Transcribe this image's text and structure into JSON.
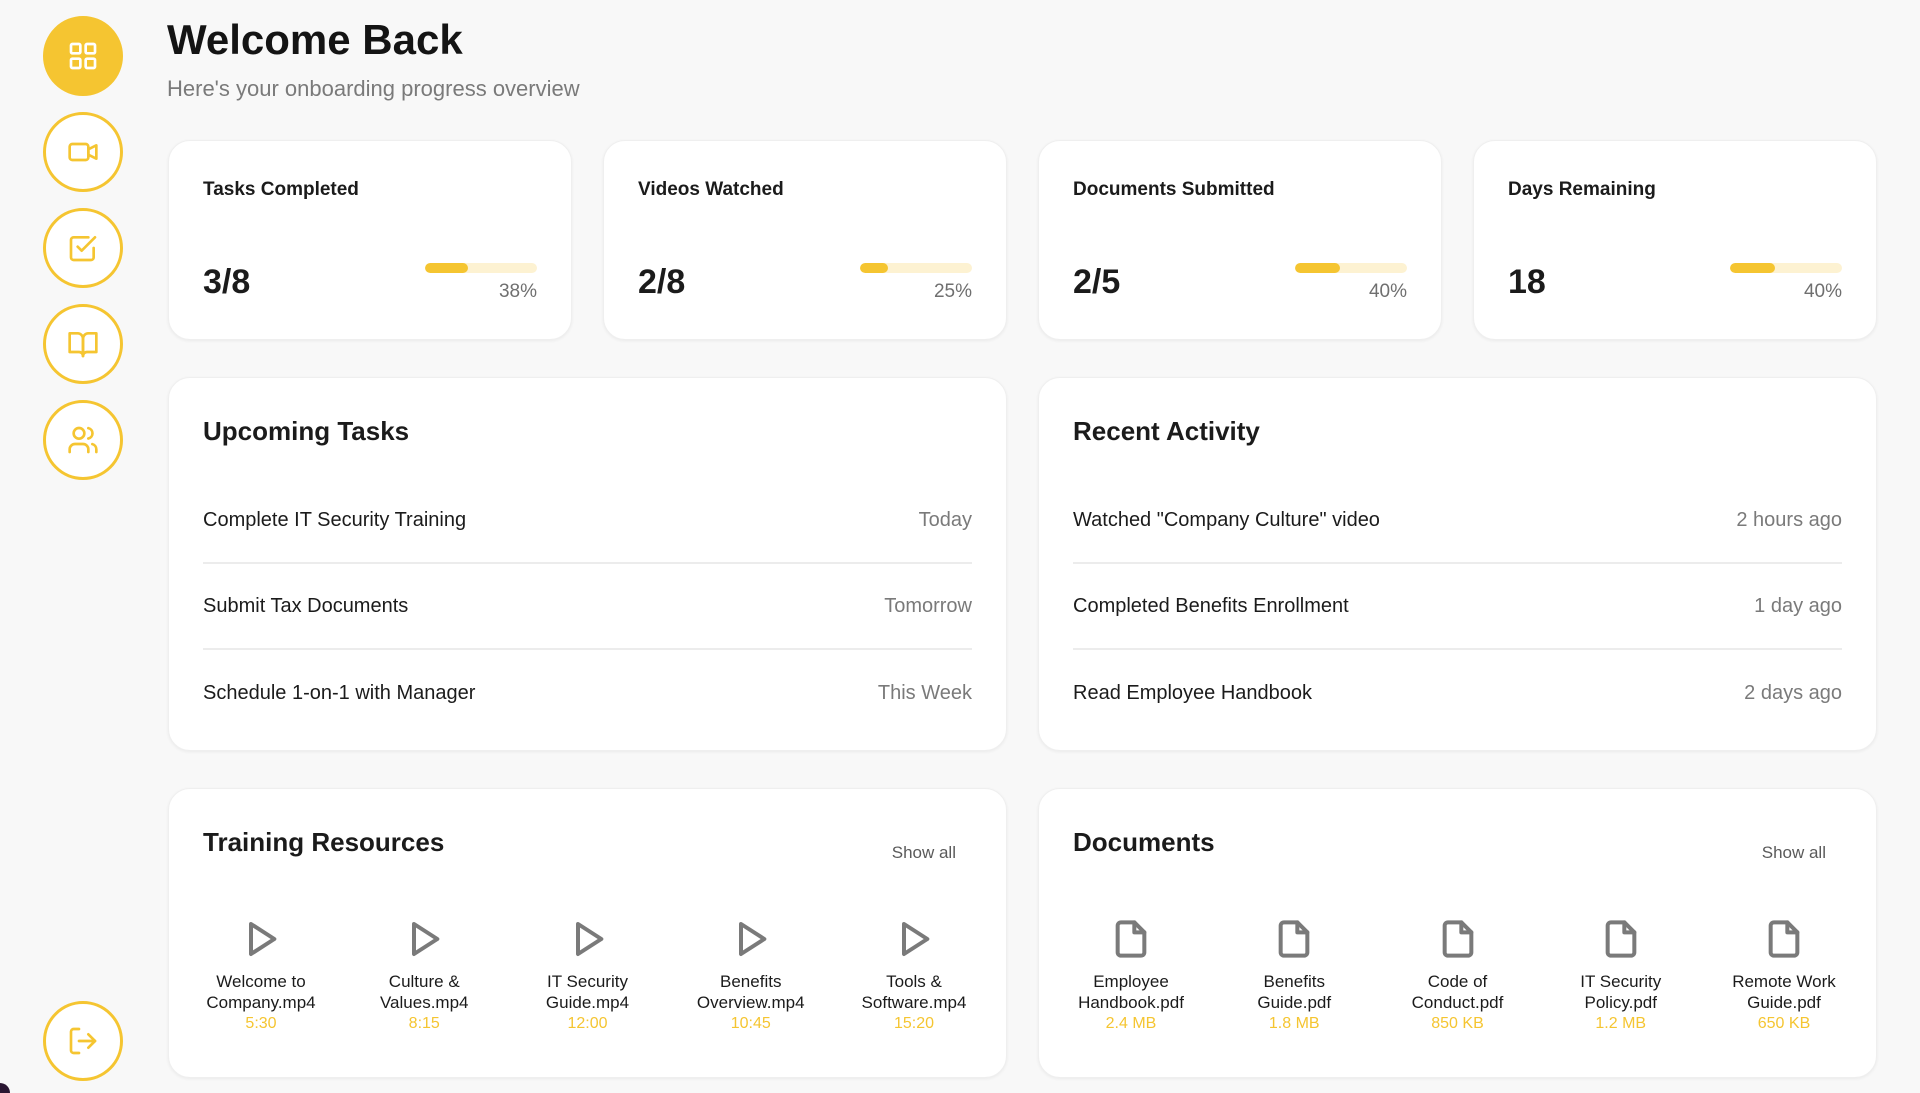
{
  "header": {
    "title": "Welcome Back",
    "subtitle": "Here's your onboarding progress overview"
  },
  "colors": {
    "accent": "#f5c531",
    "accent_light": "#fdf2d2"
  },
  "sidebar": {
    "items": [
      {
        "icon": "grid-icon",
        "active": true
      },
      {
        "icon": "video-icon",
        "active": false
      },
      {
        "icon": "checkbox-icon",
        "active": false
      },
      {
        "icon": "book-icon",
        "active": false
      },
      {
        "icon": "users-icon",
        "active": false
      }
    ],
    "logout_icon": "logout-icon"
  },
  "stats": [
    {
      "label": "Tasks Completed",
      "value": "3/8",
      "percent": "38%",
      "progress": 0.38
    },
    {
      "label": "Videos Watched",
      "value": "2/8",
      "percent": "25%",
      "progress": 0.25
    },
    {
      "label": "Documents Submitted",
      "value": "2/5",
      "percent": "40%",
      "progress": 0.4
    },
    {
      "label": "Days Remaining",
      "value": "18",
      "percent": "40%",
      "progress": 0.4
    }
  ],
  "upcoming_tasks": {
    "title": "Upcoming Tasks",
    "items": [
      {
        "text": "Complete IT Security Training",
        "when": "Today"
      },
      {
        "text": "Submit Tax Documents",
        "when": "Tomorrow"
      },
      {
        "text": "Schedule 1-on-1 with Manager",
        "when": "This Week"
      }
    ]
  },
  "recent_activity": {
    "title": "Recent Activity",
    "items": [
      {
        "text": "Watched \"Company Culture\" video",
        "when": "2 hours ago"
      },
      {
        "text": "Completed Benefits Enrollment",
        "when": "1 day ago"
      },
      {
        "text": "Read Employee Handbook",
        "when": "2 days ago"
      }
    ]
  },
  "training": {
    "title": "Training Resources",
    "show_all": "Show all",
    "files": [
      {
        "line1": "Welcome to",
        "line2": "Company.mp4",
        "meta": "5:30"
      },
      {
        "line1": "Culture &",
        "line2": "Values.mp4",
        "meta": "8:15"
      },
      {
        "line1": "IT Security",
        "line2": "Guide.mp4",
        "meta": "12:00"
      },
      {
        "line1": "Benefits",
        "line2": "Overview.mp4",
        "meta": "10:45"
      },
      {
        "line1": "Tools &",
        "line2": "Software.mp4",
        "meta": "15:20"
      }
    ]
  },
  "documents": {
    "title": "Documents",
    "show_all": "Show all",
    "files": [
      {
        "line1": "Employee",
        "line2": "Handbook.pdf",
        "meta": "2.4 MB"
      },
      {
        "line1": "Benefits",
        "line2": "Guide.pdf",
        "meta": "1.8 MB"
      },
      {
        "line1": "Code of",
        "line2": "Conduct.pdf",
        "meta": "850 KB"
      },
      {
        "line1": "IT Security",
        "line2": "Policy.pdf",
        "meta": "1.2 MB"
      },
      {
        "line1": "Remote Work",
        "line2": "Guide.pdf",
        "meta": "650 KB"
      }
    ]
  }
}
